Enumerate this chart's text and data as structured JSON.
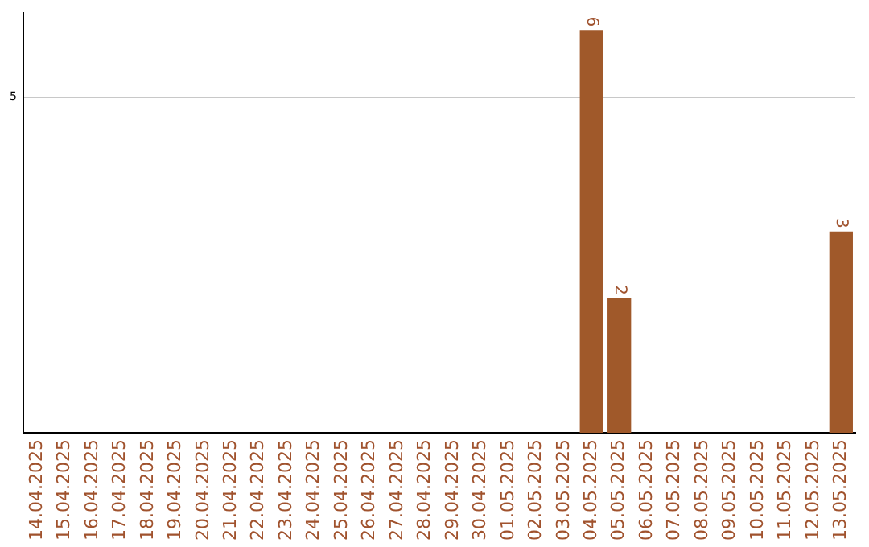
{
  "chart_data": {
    "type": "bar",
    "categories": [
      "14.04.2025",
      "15.04.2025",
      "16.04.2025",
      "17.04.2025",
      "18.04.2025",
      "19.04.2025",
      "20.04.2025",
      "21.04.2025",
      "22.04.2025",
      "23.04.2025",
      "24.04.2025",
      "25.04.2025",
      "26.04.2025",
      "27.04.2025",
      "28.04.2025",
      "29.04.2025",
      "30.04.2025",
      "01.05.2025",
      "02.05.2025",
      "03.05.2025",
      "04.05.2025",
      "05.05.2025",
      "06.05.2025",
      "07.05.2025",
      "08.05.2025",
      "09.05.2025",
      "10.05.2025",
      "11.05.2025",
      "12.05.2025",
      "13.05.2025"
    ],
    "values": [
      null,
      null,
      null,
      null,
      null,
      null,
      null,
      null,
      null,
      null,
      null,
      null,
      null,
      null,
      null,
      null,
      null,
      null,
      null,
      null,
      6,
      2,
      null,
      null,
      null,
      null,
      null,
      null,
      null,
      3
    ],
    "color": "#a0592a",
    "ylim": [
      0,
      6.25
    ],
    "yticks": [
      5
    ],
    "grid": "y",
    "data_labels": true
  }
}
